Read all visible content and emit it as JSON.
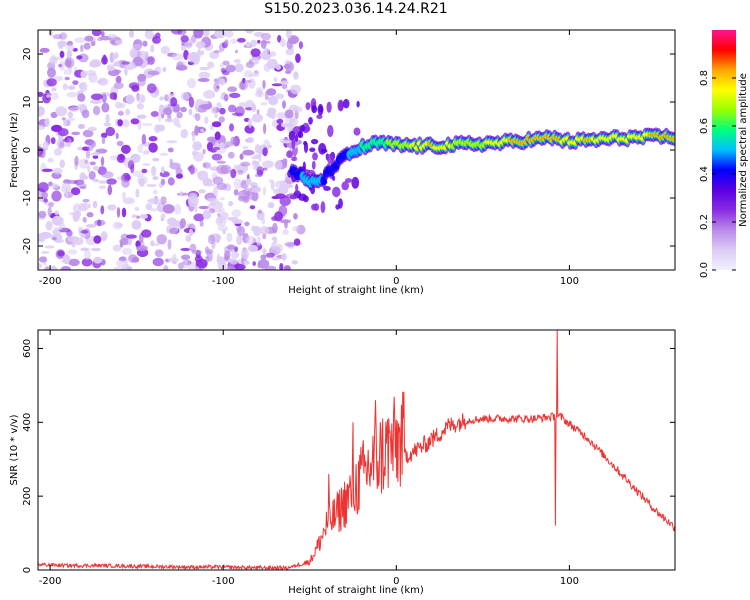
{
  "title": "S150.2023.036.14.24.R21",
  "chart_data": [
    {
      "type": "heatmap",
      "xlabel": "Height of straight line (km)",
      "ylabel": "Frequency (Hz)",
      "xlim": [
        -207,
        161
      ],
      "ylim": [
        -25,
        25
      ],
      "xticks": [
        -200,
        -100,
        0,
        100
      ],
      "yticks": [
        -20,
        -10,
        0,
        10,
        20
      ],
      "colorbar": {
        "label": "Normalized spectral amplitude",
        "range": [
          0,
          1
        ],
        "ticks": [
          "0.0",
          "0.2",
          "0.4",
          "0.6",
          "0.8"
        ],
        "tick_values": [
          0,
          0.2,
          0.4,
          0.6,
          0.8
        ],
        "colormap": [
          "#f0f0ff",
          "#ddccf5",
          "#b98ae8",
          "#8a2be2",
          "#5a00e0",
          "#0000ff",
          "#00bfff",
          "#00ff7f",
          "#9aff00",
          "#ffff00",
          "#ffa500",
          "#ff0000",
          "#ff1493"
        ]
      },
      "noise_region": [
        -207,
        -60
      ],
      "ridge": {
        "x": [
          -60,
          -50,
          -42,
          -35,
          -28,
          -20,
          -10,
          0,
          20,
          40,
          60,
          80,
          90,
          100,
          110,
          130,
          150,
          161
        ],
        "freq": [
          -4,
          -7,
          -6,
          -3,
          -1,
          0.5,
          1.5,
          1,
          0.8,
          1.2,
          1.5,
          2.2,
          2.5,
          1.8,
          2.0,
          2.5,
          2.7,
          2.8
        ],
        "amplitude": [
          0.35,
          0.45,
          0.4,
          0.35,
          0.4,
          0.5,
          0.55,
          0.6,
          0.75,
          0.6,
          0.7,
          0.85,
          0.8,
          0.7,
          0.75,
          0.7,
          0.75,
          0.8
        ]
      }
    },
    {
      "type": "line",
      "xlabel": "Height of straight line (km)",
      "ylabel": "SNR (10 * v/v)",
      "xlim": [
        -207,
        161
      ],
      "ylim": [
        0,
        650
      ],
      "xticks": [
        -200,
        -100,
        0,
        100
      ],
      "yticks": [
        0,
        200,
        400,
        600
      ],
      "color": "#ee3333",
      "trend": {
        "x": [
          -207,
          -190,
          -170,
          -150,
          -120,
          -100,
          -80,
          -62,
          -50,
          -45,
          -40,
          -35,
          -30,
          -25,
          -20,
          -15,
          -10,
          -5,
          0,
          10,
          20,
          30,
          40,
          50,
          60,
          70,
          80,
          90,
          95,
          100,
          110,
          120,
          130,
          140,
          150,
          161
        ],
        "y": [
          15,
          12,
          12,
          10,
          8,
          8,
          6,
          6,
          20,
          60,
          110,
          130,
          160,
          190,
          220,
          250,
          270,
          290,
          300,
          320,
          350,
          390,
          405,
          410,
          410,
          410,
          410,
          415,
          415,
          395,
          360,
          310,
          260,
          210,
          160,
          115
        ]
      },
      "peaks": [
        {
          "x": -39,
          "y": 260
        },
        {
          "x": -25,
          "y": 400
        },
        {
          "x": -12,
          "y": 460
        },
        {
          "x": 20,
          "y": 370
        },
        {
          "x": 93,
          "y": 650
        },
        {
          "x": 92,
          "y": 120
        }
      ]
    }
  ]
}
